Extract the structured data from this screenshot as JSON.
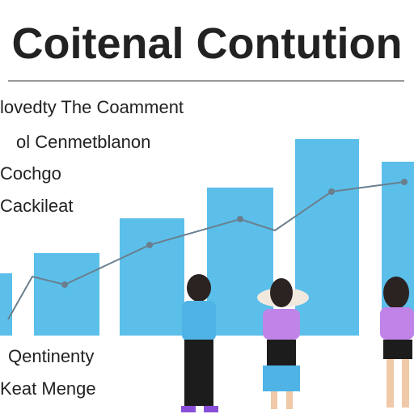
{
  "header": {
    "title": "Coitenal Contution"
  },
  "lines": [
    "lovedty The Coamment",
    "ol Cenmetblanon",
    "Cochgo",
    "Cackileat"
  ],
  "footer": [
    "Qentinenty",
    "Keat Menge"
  ]
}
